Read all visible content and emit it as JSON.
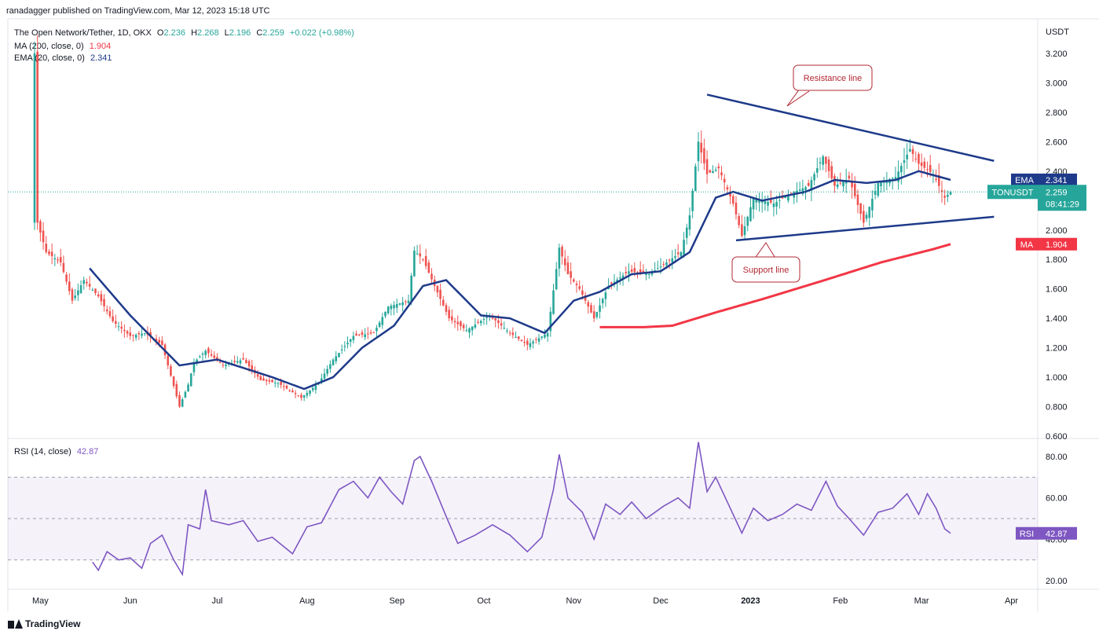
{
  "header": {
    "publisher": "ranadagger published on TradingView.com, Mar 12, 2023 15:18 UTC"
  },
  "legend": {
    "symbol": "The Open Network/Tether, 1D, OKX",
    "o_label": "O",
    "o": "2.236",
    "h_label": "H",
    "h": "2.268",
    "l_label": "L",
    "l": "2.196",
    "c_label": "C",
    "c": "2.259",
    "change": "+0.022 (+0.98%)",
    "ma_label": "MA (200, close, 0)",
    "ma_value": "1.904",
    "ema_label": "EMA (20, close, 0)",
    "ema_value": "2.341"
  },
  "colors": {
    "up": "#26a69a",
    "down": "#ef5350",
    "ema": "#1e3a8a",
    "ma": "#f23645",
    "rsi": "#7e57c2",
    "annot_border": "#b22833",
    "annot_text": "#b22833",
    "trendline": "#1e3a8a"
  },
  "footer": {
    "brand": "TradingView"
  },
  "chart_data": [
    {
      "type": "candlestick",
      "title": "The Open Network/Tether, 1D, OKX",
      "currency": "USDT",
      "ylim": [
        0.6,
        3.3
      ],
      "y_ticks": [
        "3.200",
        "3.000",
        "2.800",
        "2.600",
        "2.400",
        "2.200",
        "2.000",
        "1.800",
        "1.600",
        "1.400",
        "1.200",
        "1.000",
        "0.800",
        "0.600"
      ],
      "x_ticks": [
        "May",
        "Jun",
        "Jul",
        "Aug",
        "Sep",
        "Oct",
        "Nov",
        "Dec",
        "2023",
        "Feb",
        "Mar",
        "Apr"
      ],
      "grid": false,
      "price_labels": [
        {
          "name": "EMA",
          "value": "2.341"
        },
        {
          "name": "TONUSDT",
          "value": "2.259",
          "sub": "08:41:29"
        },
        {
          "name": "MA",
          "value": "1.904"
        }
      ],
      "annotations": [
        {
          "text": "Resistance line"
        },
        {
          "text": "Support line"
        }
      ],
      "close_anchors": [
        [
          "2022-04-29",
          3.2
        ],
        [
          "2022-04-30",
          2.05
        ],
        [
          "2022-05-03",
          1.85
        ],
        [
          "2022-05-08",
          1.78
        ],
        [
          "2022-05-12",
          1.52
        ],
        [
          "2022-05-16",
          1.66
        ],
        [
          "2022-05-21",
          1.55
        ],
        [
          "2022-05-26",
          1.38
        ],
        [
          "2022-06-01",
          1.28
        ],
        [
          "2022-06-06",
          1.3
        ],
        [
          "2022-06-12",
          1.22
        ],
        [
          "2022-06-18",
          0.8
        ],
        [
          "2022-06-21",
          0.95
        ],
        [
          "2022-06-23",
          1.1
        ],
        [
          "2022-06-27",
          1.18
        ],
        [
          "2022-07-03",
          1.08
        ],
        [
          "2022-07-10",
          1.12
        ],
        [
          "2022-07-16",
          0.98
        ],
        [
          "2022-07-22",
          0.96
        ],
        [
          "2022-07-30",
          0.86
        ],
        [
          "2022-08-05",
          0.96
        ],
        [
          "2022-08-10",
          1.12
        ],
        [
          "2022-08-17",
          1.28
        ],
        [
          "2022-08-24",
          1.3
        ],
        [
          "2022-08-29",
          1.48
        ],
        [
          "2022-09-05",
          1.52
        ],
        [
          "2022-09-07",
          1.86
        ],
        [
          "2022-09-10",
          1.8
        ],
        [
          "2022-09-14",
          1.62
        ],
        [
          "2022-09-19",
          1.4
        ],
        [
          "2022-09-25",
          1.32
        ],
        [
          "2022-10-03",
          1.42
        ],
        [
          "2022-10-10",
          1.3
        ],
        [
          "2022-10-16",
          1.22
        ],
        [
          "2022-10-23",
          1.3
        ],
        [
          "2022-10-27",
          1.88
        ],
        [
          "2022-10-30",
          1.7
        ],
        [
          "2022-11-03",
          1.6
        ],
        [
          "2022-11-08",
          1.4
        ],
        [
          "2022-11-13",
          1.62
        ],
        [
          "2022-11-20",
          1.72
        ],
        [
          "2022-11-27",
          1.7
        ],
        [
          "2022-12-03",
          1.78
        ],
        [
          "2022-12-08",
          1.85
        ],
        [
          "2022-12-11",
          2.1
        ],
        [
          "2022-12-14",
          2.6
        ],
        [
          "2022-12-17",
          2.38
        ],
        [
          "2022-12-21",
          2.42
        ],
        [
          "2022-12-26",
          2.18
        ],
        [
          "2022-12-29",
          1.96
        ],
        [
          "2023-01-02",
          2.22
        ],
        [
          "2023-01-09",
          2.18
        ],
        [
          "2023-01-15",
          2.25
        ],
        [
          "2023-01-21",
          2.3
        ],
        [
          "2023-01-26",
          2.5
        ],
        [
          "2023-01-30",
          2.3
        ],
        [
          "2023-02-04",
          2.35
        ],
        [
          "2023-02-09",
          2.05
        ],
        [
          "2023-02-14",
          2.32
        ],
        [
          "2023-02-20",
          2.36
        ],
        [
          "2023-02-25",
          2.55
        ],
        [
          "2023-02-28",
          2.45
        ],
        [
          "2023-03-05",
          2.38
        ],
        [
          "2023-03-09",
          2.22
        ],
        [
          "2023-03-11",
          2.259
        ]
      ],
      "ema_20": [
        [
          "2022-05-18",
          1.74
        ],
        [
          "2022-06-01",
          1.42
        ],
        [
          "2022-06-18",
          1.08
        ],
        [
          "2022-07-01",
          1.12
        ],
        [
          "2022-07-20",
          1.0
        ],
        [
          "2022-07-31",
          0.92
        ],
        [
          "2022-08-10",
          1.0
        ],
        [
          "2022-08-20",
          1.2
        ],
        [
          "2022-08-31",
          1.35
        ],
        [
          "2022-09-10",
          1.62
        ],
        [
          "2022-09-18",
          1.66
        ],
        [
          "2022-09-30",
          1.42
        ],
        [
          "2022-10-10",
          1.4
        ],
        [
          "2022-10-22",
          1.3
        ],
        [
          "2022-11-01",
          1.52
        ],
        [
          "2022-11-10",
          1.58
        ],
        [
          "2022-11-21",
          1.7
        ],
        [
          "2022-12-01",
          1.72
        ],
        [
          "2022-12-11",
          1.85
        ],
        [
          "2022-12-20",
          2.22
        ],
        [
          "2022-12-26",
          2.26
        ],
        [
          "2023-01-05",
          2.2
        ],
        [
          "2023-01-20",
          2.26
        ],
        [
          "2023-01-30",
          2.34
        ],
        [
          "2023-02-10",
          2.32
        ],
        [
          "2023-02-20",
          2.34
        ],
        [
          "2023-02-28",
          2.4
        ],
        [
          "2023-03-11",
          2.341
        ]
      ],
      "ma_200": [
        [
          "2022-11-10",
          1.34
        ],
        [
          "2022-11-25",
          1.34
        ],
        [
          "2022-12-05",
          1.35
        ],
        [
          "2022-12-20",
          1.44
        ],
        [
          "2023-01-05",
          1.53
        ],
        [
          "2023-01-25",
          1.65
        ],
        [
          "2023-02-15",
          1.78
        ],
        [
          "2023-03-05",
          1.87
        ],
        [
          "2023-03-11",
          1.904
        ]
      ],
      "trendlines": [
        {
          "name": "resistance",
          "from": [
            "2022-12-17",
            2.92
          ],
          "to": [
            "2023-03-26",
            2.47
          ]
        },
        {
          "name": "support",
          "from": [
            "2022-12-27",
            1.93
          ],
          "to": [
            "2023-03-26",
            2.09
          ]
        }
      ]
    },
    {
      "type": "line",
      "title": "RSI (14, close)",
      "value_label": "42.87",
      "ylim": [
        15,
        90
      ],
      "y_ticks": [
        "80.00",
        "60.00",
        "40.00",
        "20.00"
      ],
      "bands": [
        30,
        50,
        70
      ],
      "series": [
        {
          "name": "RSI",
          "values": [
            [
              "2022-05-19",
              29
            ],
            [
              "2022-05-21",
              25
            ],
            [
              "2022-05-24",
              34
            ],
            [
              "2022-05-28",
              30
            ],
            [
              "2022-06-01",
              31
            ],
            [
              "2022-06-05",
              26
            ],
            [
              "2022-06-08",
              38
            ],
            [
              "2022-06-12",
              42
            ],
            [
              "2022-06-16",
              30
            ],
            [
              "2022-06-19",
              23
            ],
            [
              "2022-06-21",
              47
            ],
            [
              "2022-06-25",
              45
            ],
            [
              "2022-06-27",
              64
            ],
            [
              "2022-06-29",
              49
            ],
            [
              "2022-07-05",
              47
            ],
            [
              "2022-07-10",
              49
            ],
            [
              "2022-07-15",
              39
            ],
            [
              "2022-07-20",
              41
            ],
            [
              "2022-07-27",
              33
            ],
            [
              "2022-08-01",
              46
            ],
            [
              "2022-08-06",
              48
            ],
            [
              "2022-08-12",
              64
            ],
            [
              "2022-08-17",
              68
            ],
            [
              "2022-08-22",
              60
            ],
            [
              "2022-08-26",
              70
            ],
            [
              "2022-08-30",
              63
            ],
            [
              "2022-09-03",
              57
            ],
            [
              "2022-09-07",
              78
            ],
            [
              "2022-09-09",
              80
            ],
            [
              "2022-09-13",
              68
            ],
            [
              "2022-09-18",
              51
            ],
            [
              "2022-09-22",
              38
            ],
            [
              "2022-09-28",
              42
            ],
            [
              "2022-10-04",
              47
            ],
            [
              "2022-10-10",
              42
            ],
            [
              "2022-10-16",
              34
            ],
            [
              "2022-10-21",
              41
            ],
            [
              "2022-10-25",
              64
            ],
            [
              "2022-10-27",
              81
            ],
            [
              "2022-10-30",
              60
            ],
            [
              "2022-11-04",
              53
            ],
            [
              "2022-11-08",
              40
            ],
            [
              "2022-11-12",
              57
            ],
            [
              "2022-11-17",
              52
            ],
            [
              "2022-11-21",
              58
            ],
            [
              "2022-11-26",
              50
            ],
            [
              "2022-12-02",
              56
            ],
            [
              "2022-12-07",
              60
            ],
            [
              "2022-12-11",
              55
            ],
            [
              "2022-12-14",
              87
            ],
            [
              "2022-12-17",
              63
            ],
            [
              "2022-12-20",
              70
            ],
            [
              "2022-12-24",
              58
            ],
            [
              "2022-12-29",
              43
            ],
            [
              "2023-01-02",
              55
            ],
            [
              "2023-01-07",
              49
            ],
            [
              "2023-01-12",
              52
            ],
            [
              "2023-01-17",
              57
            ],
            [
              "2023-01-22",
              54
            ],
            [
              "2023-01-27",
              68
            ],
            [
              "2023-01-31",
              56
            ],
            [
              "2023-02-04",
              50
            ],
            [
              "2023-02-09",
              42
            ],
            [
              "2023-02-14",
              53
            ],
            [
              "2023-02-19",
              55
            ],
            [
              "2023-02-24",
              62
            ],
            [
              "2023-02-28",
              52
            ],
            [
              "2023-03-03",
              62
            ],
            [
              "2023-03-06",
              55
            ],
            [
              "2023-03-09",
              45
            ],
            [
              "2023-03-11",
              42.87
            ]
          ]
        }
      ]
    }
  ]
}
